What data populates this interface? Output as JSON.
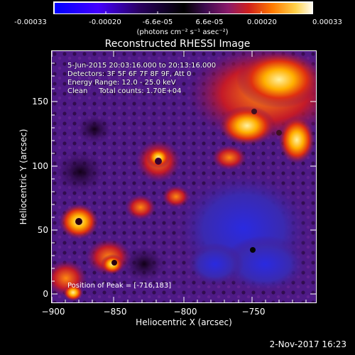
{
  "colorbar": {
    "tick_labels": [
      "-0.00033",
      "-0.00020",
      "-6.6e-05",
      "6.6e-05",
      "0.00020",
      "0.00033"
    ],
    "units": "(photons cm⁻² s⁻¹ asec⁻²)",
    "colors": [
      "#0000ff",
      "#5a00ff",
      "#2a0050",
      "#000000",
      "#3a0a4a",
      "#7b1a7d",
      "#c8102a",
      "#ff6a00",
      "#ffcc40",
      "#ffffff"
    ]
  },
  "title": "Reconstructed RHESSI Image",
  "info": {
    "time_range": "5-Jun-2015 20:03:16.000 to 20:13:16.000",
    "detectors": "Detectors: 3F 5F 6F 7F 8F 9F, Att 0",
    "energy": "Energy Range: 12.0 - 25.0 keV",
    "clean": "Clean     Total counts: 1.70E+04"
  },
  "peak": "Position of Peak = [-716,183]",
  "axes": {
    "xlabel": "Heliocentric X (arcsec)",
    "ylabel": "Heliocentric Y (arcsec)",
    "x_ticks": [
      "−900",
      "−850",
      "−800",
      "−750"
    ],
    "y_ticks": [
      "0",
      "50",
      "100",
      "150"
    ]
  },
  "footer_date": "2-Nov-2017 16:23"
}
